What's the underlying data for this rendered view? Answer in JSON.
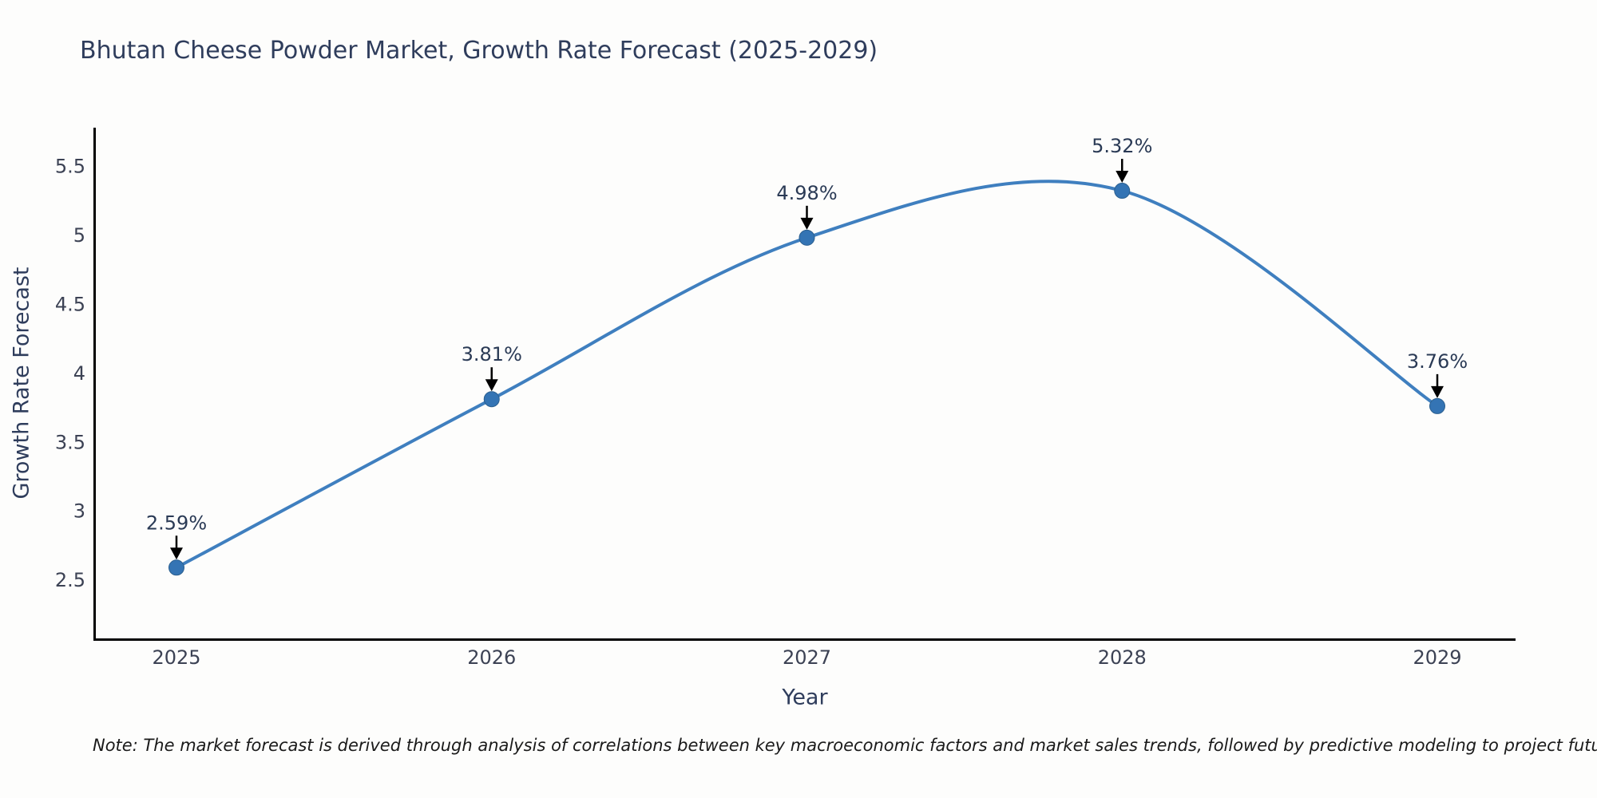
{
  "title": "Bhutan Cheese Powder Market, Growth Rate Forecast (2025-2029)",
  "note": "Note: The market forecast is derived through analysis of correlations between key macroeconomic factors and market sales trends, followed by predictive modeling to project future sales",
  "chart_data": {
    "type": "line",
    "title": "Bhutan Cheese Powder Market, Growth Rate Forecast (2025-2029)",
    "xlabel": "Year",
    "ylabel": "Growth Rate Forecast",
    "categories": [
      "2025",
      "2026",
      "2027",
      "2028",
      "2029"
    ],
    "series": [
      {
        "name": "Growth Rate Forecast",
        "values": [
          2.59,
          3.81,
          4.98,
          5.32,
          3.76
        ],
        "point_labels": [
          "2.59%",
          "3.81%",
          "4.98%",
          "5.32%",
          "3.76%"
        ]
      }
    ],
    "ytick_values": [
      2.5,
      3,
      3.5,
      4,
      4.5,
      5,
      5.5
    ],
    "ytick_labels": [
      "2.5",
      "3",
      "3.5",
      "4",
      "4.5",
      "5",
      "5.5"
    ],
    "ylim": [
      2.077,
      5.777
    ],
    "grid": false,
    "legend_position": "none",
    "line_shape": "spline",
    "colors": {
      "line": "#3f7fbf",
      "marker_fill": "#3474b4",
      "marker_edge": "#2b5f8f",
      "annotation_arrow": "#000000",
      "axis_line": "#000000",
      "text": "#2f3d5c"
    }
  }
}
